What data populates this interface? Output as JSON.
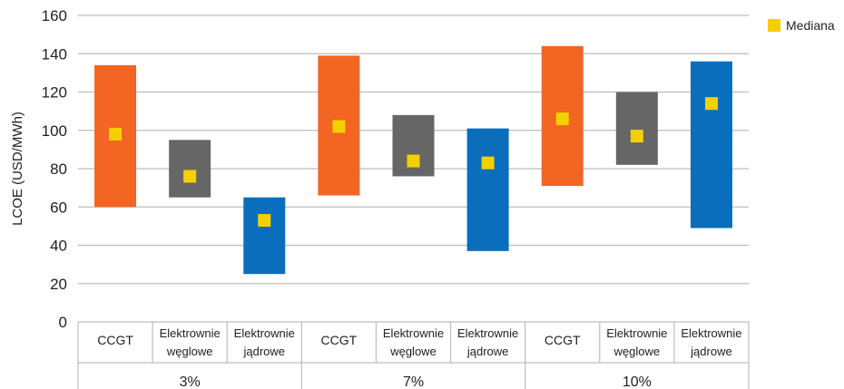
{
  "chart_data": {
    "type": "bar",
    "subtype": "floating-range-with-median",
    "ylabel": "LCOE (USD/MWh)",
    "ylim": [
      0,
      160
    ],
    "yticks": [
      0,
      20,
      40,
      60,
      80,
      100,
      120,
      140,
      160
    ],
    "grid": true,
    "legend": {
      "position": "top-right",
      "entries": [
        {
          "name": "Mediana",
          "color": "#f5d000"
        }
      ]
    },
    "groups": [
      {
        "label": "3%",
        "items": [
          {
            "category": "CCGT",
            "min": 60,
            "max": 134,
            "median": 98,
            "color": "#f26522"
          },
          {
            "category": "Elektrownie węglowe",
            "min": 65,
            "max": 95,
            "median": 76,
            "color": "#666666"
          },
          {
            "category": "Elektrownie jądrowe",
            "min": 25,
            "max": 65,
            "median": 53,
            "color": "#0a6ebd"
          }
        ]
      },
      {
        "label": "7%",
        "items": [
          {
            "category": "CCGT",
            "min": 66,
            "max": 139,
            "median": 102,
            "color": "#f26522"
          },
          {
            "category": "Elektrownie węglowe",
            "min": 76,
            "max": 108,
            "median": 84,
            "color": "#666666"
          },
          {
            "category": "Elektrownie jądrowe",
            "min": 37,
            "max": 101,
            "median": 83,
            "color": "#0a6ebd"
          }
        ]
      },
      {
        "label": "10%",
        "items": [
          {
            "category": "CCGT",
            "min": 71,
            "max": 144,
            "median": 106,
            "color": "#f26522"
          },
          {
            "category": "Elektrownie węglowe",
            "min": 82,
            "max": 120,
            "median": 97,
            "color": "#666666"
          },
          {
            "category": "Elektrownie jądrowe",
            "min": 49,
            "max": 136,
            "median": 114,
            "color": "#0a6ebd"
          }
        ]
      }
    ]
  },
  "colors": {
    "ccgt": "#f26522",
    "coal": "#666666",
    "nuclear": "#0a6ebd",
    "median": "#f5d000",
    "grid": "#bdbdbd",
    "text": "#222222"
  }
}
